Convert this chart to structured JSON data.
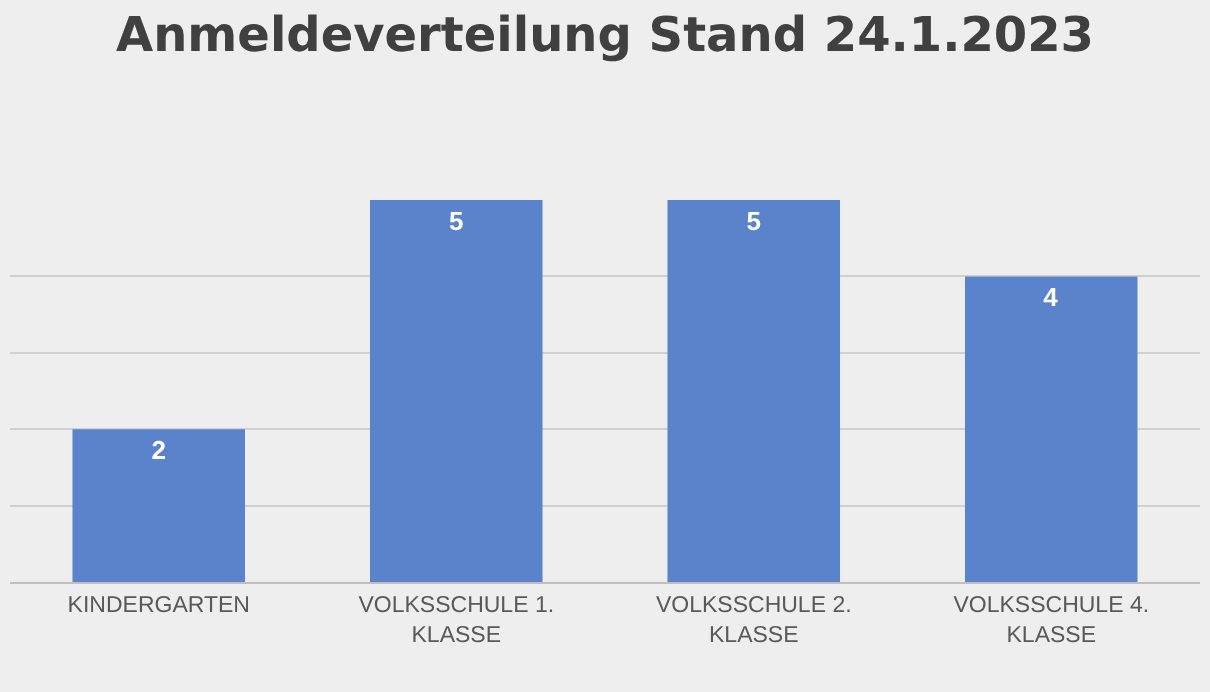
{
  "chart_data": {
    "type": "bar",
    "title": "Anmeldeverteilung Stand 24.1.2023",
    "categories": [
      "KINDERGARTEN",
      "VOLKSSCHULE 1. KLASSE",
      "VOLKSSCHULE 2. KLASSE",
      "VOLKSSCHULE 4. KLASSE"
    ],
    "values": [
      2,
      5,
      5,
      4
    ],
    "color": "#5b83cb",
    "data_labels": true,
    "ylim": [
      0,
      5
    ],
    "grid": "y",
    "tick_labels": "x"
  }
}
